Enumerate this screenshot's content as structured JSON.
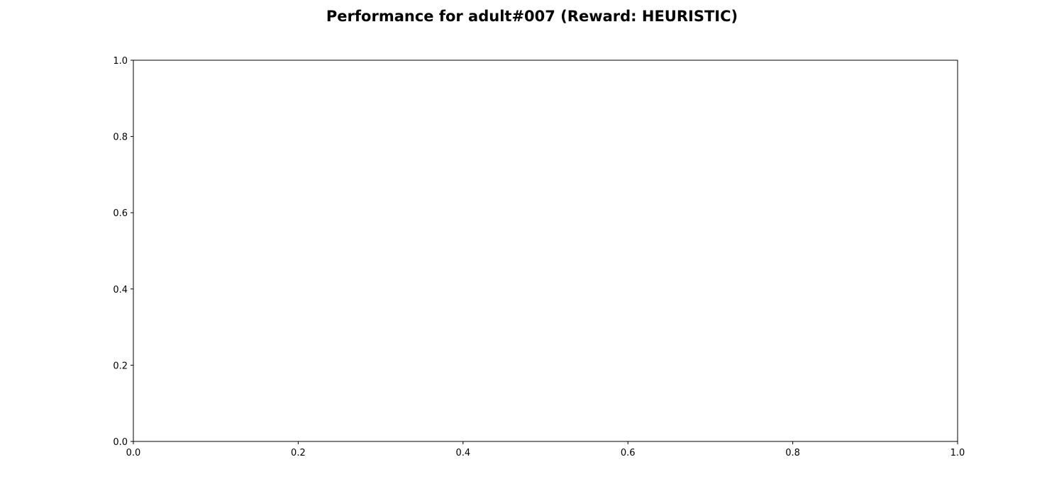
{
  "chart_data": {
    "type": "line",
    "title": "Performance for adult#007 (Reward: HEURISTIC)",
    "xlabel": "",
    "ylabel": "",
    "xlim": [
      0.0,
      1.0
    ],
    "ylim": [
      0.0,
      1.0
    ],
    "x_ticks": [
      "0.0",
      "0.2",
      "0.4",
      "0.6",
      "0.8",
      "1.0"
    ],
    "y_ticks": [
      "0.0",
      "0.2",
      "0.4",
      "0.6",
      "0.8",
      "1.0"
    ],
    "grid": false,
    "series": []
  }
}
